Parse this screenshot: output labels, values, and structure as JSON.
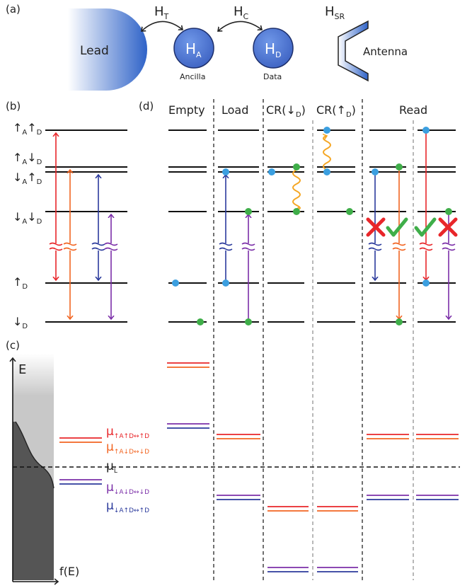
{
  "panels": {
    "a": "(a)",
    "b": "(b)",
    "c": "(c)",
    "d": "(d)"
  },
  "panel_a": {
    "lead": "Lead",
    "antenna": "Antenna",
    "hamiltonians": {
      "ht": {
        "main": "H",
        "sub": "T"
      },
      "hc": {
        "main": "H",
        "sub": "C"
      },
      "hsr": {
        "main": "H",
        "sub": "SR"
      },
      "ha": {
        "main": "H",
        "sub": "A"
      },
      "hd": {
        "main": "H",
        "sub": "D"
      }
    },
    "ancilla": "Ancilla",
    "data": "Data"
  },
  "panel_b": {
    "state_labels": [
      {
        "a": "↑A",
        "d": "↑D",
        "pieces": [
          "↑",
          "A",
          "↑",
          "D"
        ]
      },
      {
        "pieces": [
          "↑",
          "A",
          "↓",
          "D"
        ]
      },
      {
        "pieces": [
          "↓",
          "A",
          "↑",
          "D"
        ]
      },
      {
        "pieces": [
          "↓",
          "A",
          "↓",
          "D"
        ]
      },
      {
        "pieces": [
          "↑",
          "D"
        ]
      },
      {
        "pieces": [
          "↓",
          "D"
        ]
      }
    ]
  },
  "panel_c": {
    "e_axis": "E",
    "f_axis": "f(E)",
    "mu_labels": [
      {
        "id": "mu1",
        "main": "μ",
        "sub": "↑A↑D↔↑D",
        "color": "#e8262a"
      },
      {
        "id": "mu2",
        "main": "μ",
        "sub": "↑A↓D↔↓D",
        "color": "#f26522"
      },
      {
        "id": "muL",
        "main": "μ",
        "sub": "L",
        "color": "#222222"
      },
      {
        "id": "mu3",
        "main": "μ",
        "sub": "↓A↓D↔↓D",
        "color": "#7b2fa8"
      },
      {
        "id": "mu4",
        "main": "μ",
        "sub": "↓A↑D↔↑D",
        "color": "#2b3a9c"
      }
    ]
  },
  "panel_d": {
    "columns": [
      "Empty",
      "Load",
      "CR(↓D)",
      "CR(↑D)",
      "Read"
    ],
    "cr_labels": [
      {
        "pre": "CR(",
        "arrow": "↓",
        "sub": "D",
        "post": ")"
      },
      {
        "pre": "CR(",
        "arrow": "↑",
        "sub": "D",
        "post": ")"
      }
    ]
  },
  "colors": {
    "red": "#e8262a",
    "orange": "#f26522",
    "blue": "#2b3a9c",
    "purple": "#7b2fa8",
    "dot_blue": "#3b9fe0",
    "dot_green": "#3fae49",
    "check": "#3fae49",
    "cross": "#e8262a",
    "wavy": "#f5a623",
    "dot_blue_hex": "#3b9fe0"
  }
}
